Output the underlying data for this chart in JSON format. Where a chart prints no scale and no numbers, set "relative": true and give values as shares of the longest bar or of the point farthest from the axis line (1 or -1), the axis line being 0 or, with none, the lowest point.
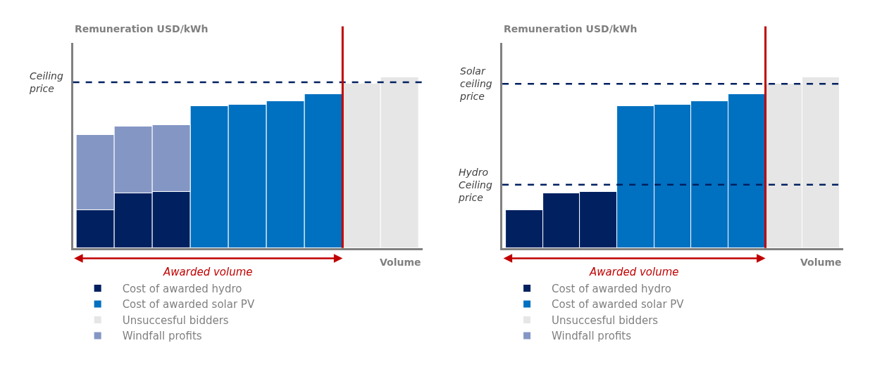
{
  "chart_data": [
    {
      "type": "bar",
      "relative": true,
      "stacked": true,
      "ylabel": "Remuneration USD/kWh",
      "xlabel": "Volume",
      "legend": "bottom",
      "categories": [
        null,
        null,
        null,
        null,
        null,
        null,
        null,
        null,
        null
      ],
      "annotations": [
        "Awarded volume"
      ],
      "series": [
        {
          "name": "Cost of awarded hydro",
          "color": "#002060",
          "values": [
            0.22,
            0.32,
            0.33,
            null,
            null,
            null,
            null,
            null,
            null
          ]
        },
        {
          "name": "Cost of awarded solar PV",
          "color": "#0070c0",
          "values": [
            null,
            null,
            null,
            0.83,
            0.84,
            0.86,
            0.9,
            null,
            null
          ]
        },
        {
          "name": "Unsuccesful bidders",
          "color": "#e6e6e6",
          "values": [
            null,
            null,
            null,
            null,
            null,
            null,
            null,
            0.96,
            1
          ]
        },
        {
          "name": "Windfall profits",
          "color": "#8496c4",
          "values": [
            0.44,
            0.39,
            0.39,
            null,
            null,
            null,
            null,
            null,
            null
          ]
        }
      ],
      "ref_lines": [
        {
          "axis": "y",
          "value": 0.97,
          "label": "Ceiling price",
          "color": "#002060",
          "line_style": "dashed"
        }
      ]
    },
    {
      "type": "bar",
      "relative": true,
      "stacked": true,
      "ylabel": "Remuneration USD/kWh",
      "xlabel": "Volume",
      "legend": "bottom",
      "categories": [
        null,
        null,
        null,
        null,
        null,
        null,
        null,
        null,
        null
      ],
      "annotations": [
        "Awarded volume"
      ],
      "series": [
        {
          "name": "Cost of awarded hydro",
          "color": "#002060",
          "values": [
            0.22,
            0.32,
            0.33,
            null,
            null,
            null,
            null,
            null,
            null
          ]
        },
        {
          "name": "Cost of awarded solar PV",
          "color": "#0070c0",
          "values": [
            null,
            null,
            null,
            0.83,
            0.84,
            0.86,
            0.9,
            null,
            null
          ]
        },
        {
          "name": "Unsuccesful bidders",
          "color": "#e6e6e6",
          "values": [
            null,
            null,
            null,
            null,
            null,
            null,
            null,
            0.96,
            1
          ]
        },
        {
          "name": "Windfall profits",
          "color": "#8496c4",
          "values": [
            null,
            null,
            null,
            null,
            null,
            null,
            null,
            null,
            null
          ]
        }
      ],
      "ref_lines": [
        {
          "axis": "y",
          "value": 0.96,
          "label": "Solar ceiling price",
          "color": "#002060",
          "line_style": "dashed"
        },
        {
          "axis": "y",
          "value": 0.37,
          "label": "Hydro Ceiling price",
          "color": "#002060",
          "line_style": "dashed"
        }
      ]
    }
  ]
}
